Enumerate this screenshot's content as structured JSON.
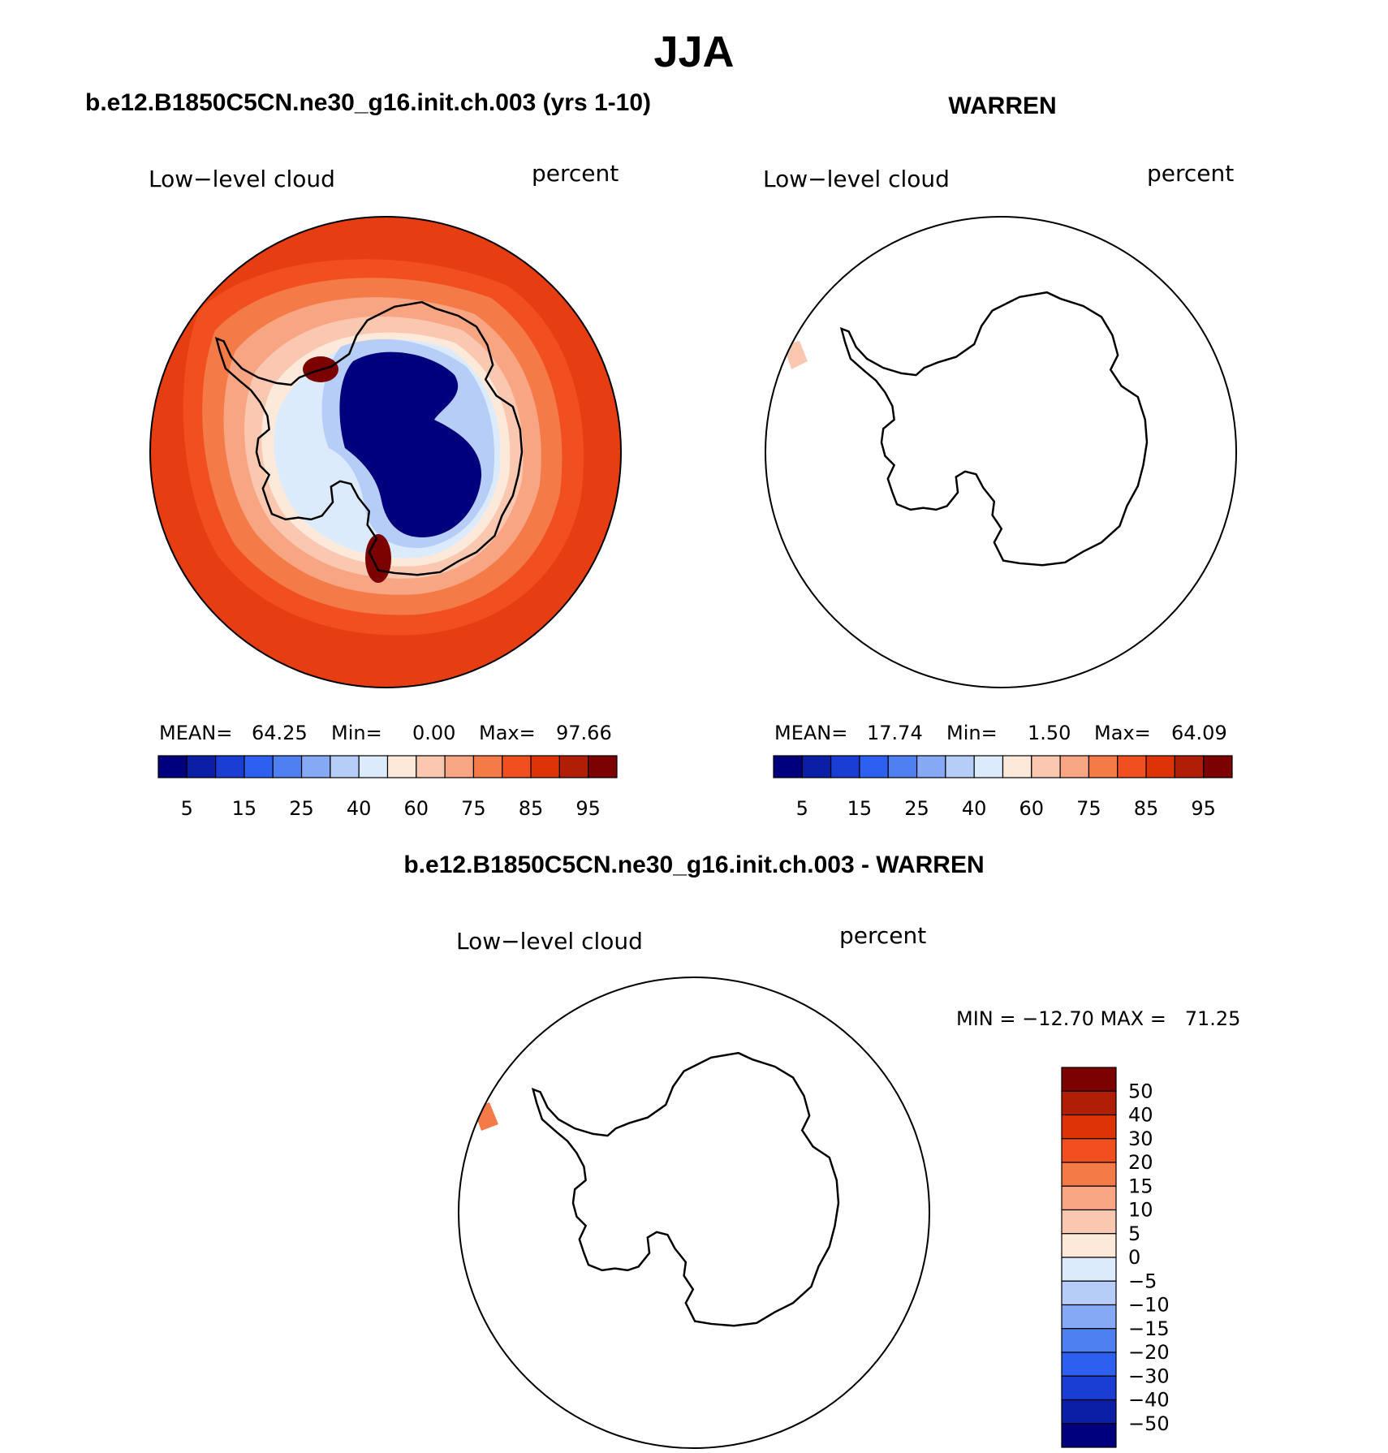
{
  "main_title": "JJA",
  "panels": [
    {
      "title": "b.e12.B1850C5CN.ne30_g16.init.ch.003 (yrs 1-10)",
      "left_label": "Low−level cloud",
      "right_label": "percent",
      "stats": {
        "mean_label": "MEAN=",
        "mean": "64.25",
        "min_label": "Min=",
        "min": "0.00",
        "max_label": "Max=",
        "max": "97.66"
      }
    },
    {
      "title": "WARREN",
      "left_label": "Low−level cloud",
      "right_label": "percent",
      "stats": {
        "mean_label": "MEAN=",
        "mean": "17.74",
        "min_label": "Min=",
        "min": "1.50",
        "max_label": "Max=",
        "max": "64.09"
      }
    },
    {
      "title": "b.e12.B1850C5CN.ne30_g16.init.ch.003 - WARREN",
      "left_label": "Low−level cloud",
      "right_label": "percent",
      "minmax": "MIN = −12.70 MAX =   71.25"
    }
  ],
  "abs_colorbar": {
    "colors": [
      "#00007d",
      "#0a1fa6",
      "#1a3ed3",
      "#2d5ff0",
      "#4f80f2",
      "#86a9f5",
      "#b5cdf7",
      "#dcebfb",
      "#fde9d9",
      "#fac8b0",
      "#f7a582",
      "#f47a47",
      "#f14f1f",
      "#de3307",
      "#b01f05",
      "#7c0202"
    ],
    "labels": [
      "5",
      "15",
      "25",
      "40",
      "60",
      "75",
      "85",
      "95"
    ]
  },
  "diff_colorbar": {
    "colors": [
      "#7c0202",
      "#b01f05",
      "#de3307",
      "#f14f1f",
      "#f47a47",
      "#f7a582",
      "#fac8b0",
      "#fde9d9",
      "#dcebfb",
      "#b5cdf7",
      "#86a9f5",
      "#4f80f2",
      "#2d5ff0",
      "#1a3ed3",
      "#0a1fa6",
      "#00007d"
    ],
    "labels": [
      "50",
      "40",
      "30",
      "20",
      "15",
      "10",
      "5",
      "0",
      "−5",
      "−10",
      "−15",
      "−20",
      "−30",
      "−40",
      "−50"
    ]
  },
  "map_layers": {
    "model": {
      "ocean_color": "#e63e12",
      "contours": [
        {
          "level": "80",
          "color": "#f14f1f"
        },
        {
          "level": "70",
          "color": "#f47a47"
        },
        {
          "level": "60",
          "color": "#f7a582"
        },
        {
          "level": "50",
          "color": "#fac8b0"
        },
        {
          "level": "40",
          "color": "#fde9d9"
        },
        {
          "level": "30",
          "color": "#dcebfb"
        },
        {
          "level": "20",
          "color": "#b5cdf7"
        },
        {
          "level": "5",
          "color": "#00007d"
        }
      ],
      "hotspot_color": "#7c0202"
    },
    "obs": {
      "patch_color": "#fac8b0"
    },
    "diff": {
      "patch_color": "#f47a47"
    },
    "coastline_color": "#000000"
  }
}
